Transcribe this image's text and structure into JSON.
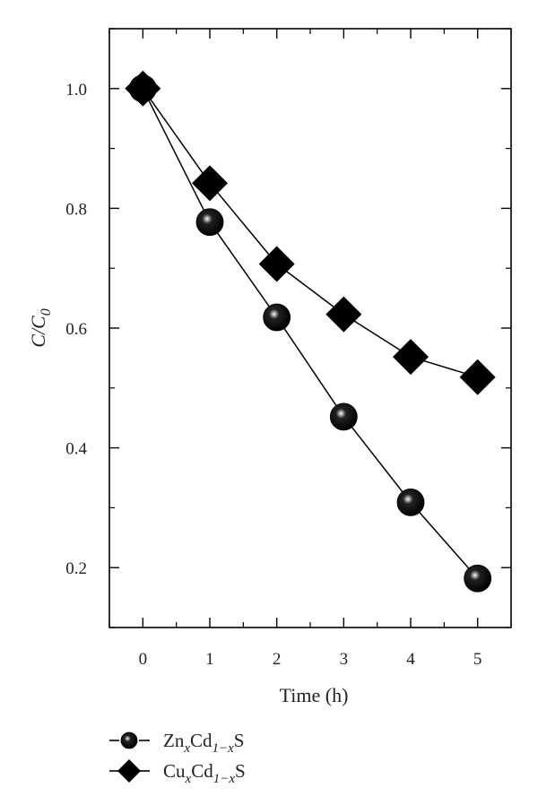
{
  "chart_data": {
    "type": "line",
    "x": [
      0,
      1,
      2,
      3,
      4,
      5
    ],
    "xlabel": "Time (h)",
    "ylabel": {
      "main": "C/C",
      "sub": "0"
    },
    "xlim": [
      -0.5,
      5.5
    ],
    "ylim": [
      0.1,
      1.1
    ],
    "xticks": [
      0,
      1,
      2,
      3,
      4,
      5
    ],
    "yticks": [
      0.2,
      0.4,
      0.6,
      0.8,
      1.0
    ],
    "ytick_labels": [
      "0.2",
      "0.4",
      "0.6",
      "0.8",
      "1.0"
    ],
    "grid": false,
    "legend_position": "bottom-left",
    "series": [
      {
        "name_parts": [
          "Zn",
          "x",
          "Cd",
          "1−x",
          "S"
        ],
        "marker": "sphere",
        "values": [
          1.0,
          0.777,
          0.618,
          0.452,
          0.309,
          0.182
        ]
      },
      {
        "name_parts": [
          "Cu",
          "x",
          "Cd",
          "1−x",
          "S"
        ],
        "marker": "diamond",
        "values": [
          1.0,
          0.842,
          0.707,
          0.623,
          0.552,
          0.518
        ]
      }
    ]
  }
}
